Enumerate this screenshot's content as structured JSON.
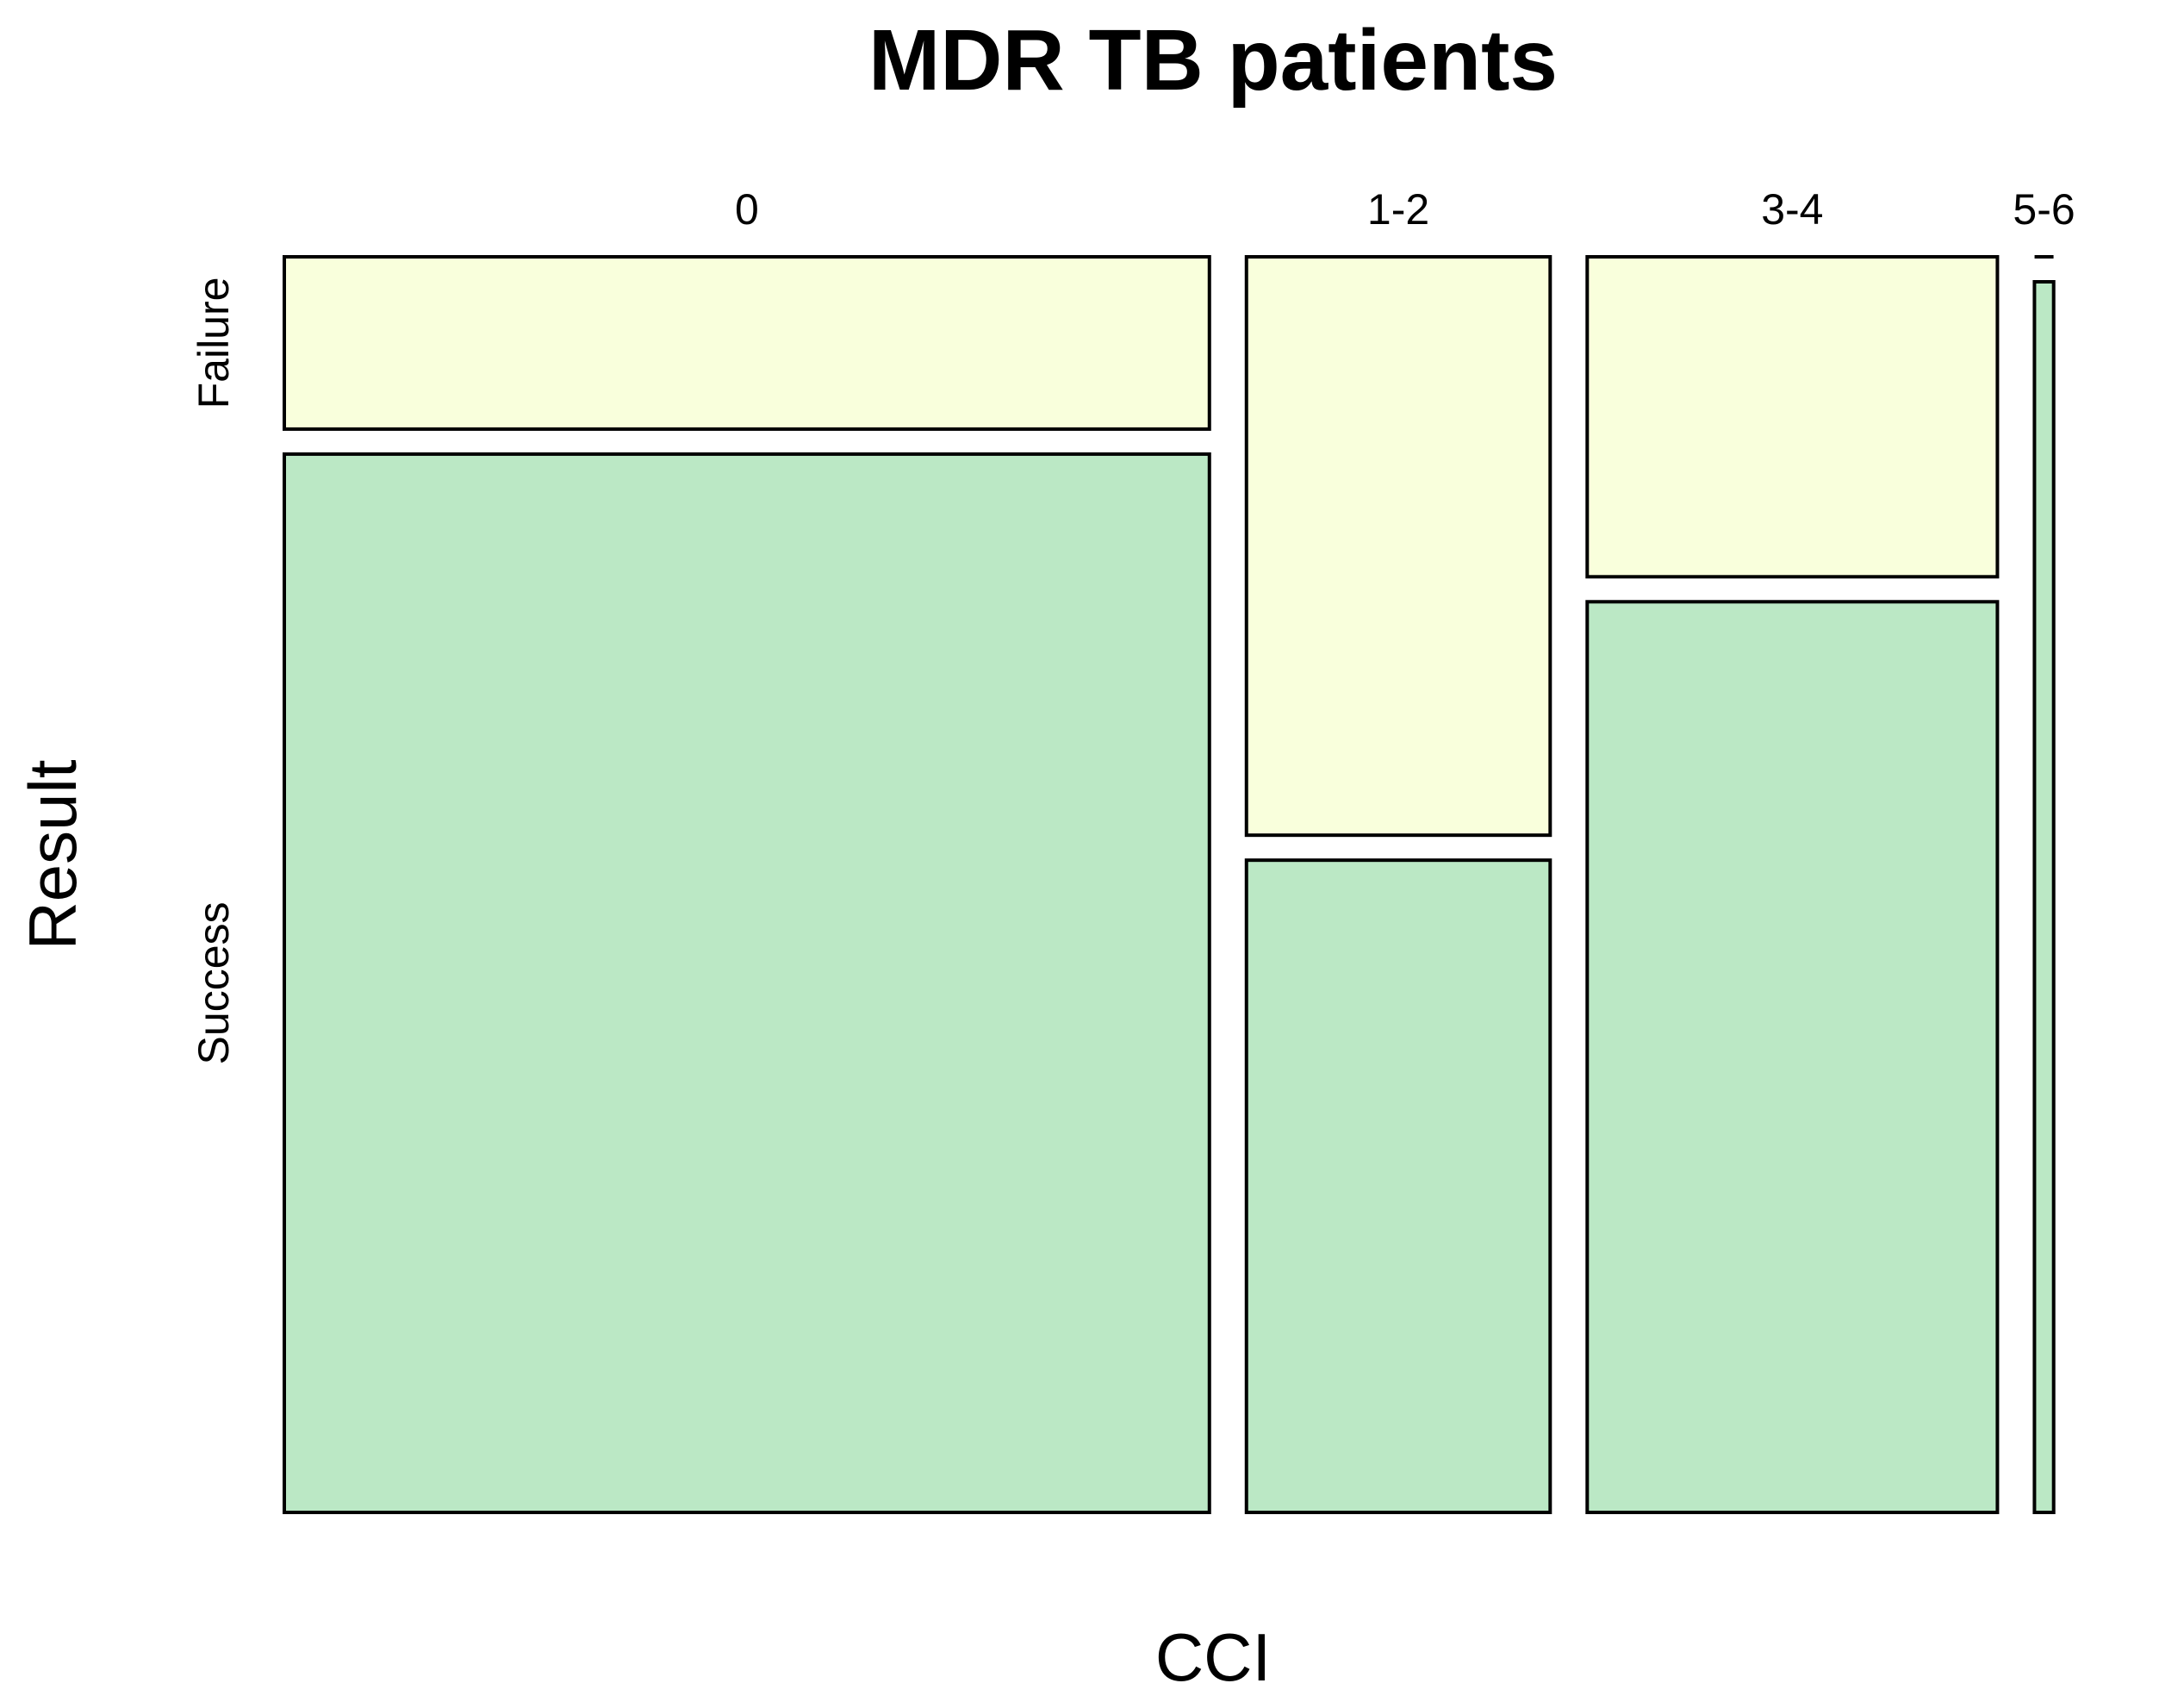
{
  "chart_data": {
    "type": "mosaic",
    "title": "MDR TB patients",
    "xlabel": "CCI",
    "ylabel": "Result",
    "categories": [
      "0",
      "1-2",
      "3-4",
      "5-6"
    ],
    "category_proportions": [
      0.53,
      0.174,
      0.235,
      0.011
    ],
    "rows": [
      "Failure",
      "Success"
    ],
    "series": [
      {
        "name": "Failure",
        "color": "#f9ffdc",
        "fractions": [
          0.14,
          0.47,
          0.26,
          0.0
        ]
      },
      {
        "name": "Success",
        "color": "#bbe8c5",
        "fractions": [
          0.86,
          0.53,
          0.74,
          1.0
        ]
      }
    ],
    "grid": false,
    "legend": "none"
  }
}
